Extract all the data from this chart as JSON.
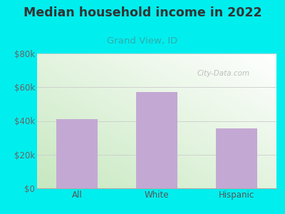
{
  "categories": [
    "All",
    "White",
    "Hispanic"
  ],
  "values": [
    41000,
    57000,
    35500
  ],
  "bar_color": "#C4A8D4",
  "title": "Median household income in 2022",
  "subtitle": "Grand View, ID",
  "subtitle_color": "#33AAAA",
  "title_color": "#333333",
  "title_fontsize": 12.5,
  "subtitle_fontsize": 9.5,
  "tick_label_fontsize": 8.5,
  "outer_bg": "#00EEEE",
  "ylim": [
    0,
    80000
  ],
  "yticks": [
    0,
    20000,
    40000,
    60000,
    80000
  ],
  "ytick_labels": [
    "$0",
    "$20k",
    "$40k",
    "$60k",
    "$80k"
  ],
  "watermark": "City-Data.com",
  "grid_color": "#CCCCCC",
  "gradient_colors": [
    "#C8E8C0",
    "#E8F5E0",
    "#EEFAF0",
    "#F8FFFA",
    "#FFFFFF"
  ]
}
